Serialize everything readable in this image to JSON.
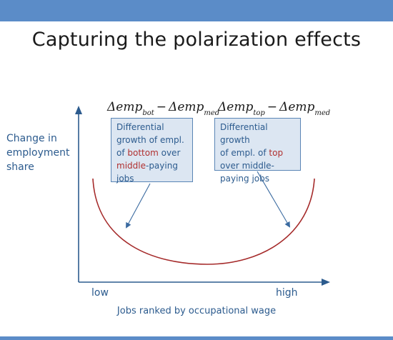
{
  "title": "Capturing the polarization effects",
  "y_axis_label_lines": [
    "Change in",
    "employment",
    "share"
  ],
  "x_axis_label": "Jobs ranked by occupational wage",
  "x_ticks": {
    "low": "low",
    "high": "high"
  },
  "formulas": {
    "left": {
      "term1": "Δemp",
      "sub1": "bot",
      "operator": "−",
      "term2": "Δemp",
      "sub2": "med"
    },
    "right": {
      "term1": "Δemp",
      "sub1": "top",
      "operator": "−",
      "term2": "Δemp",
      "sub2": "med"
    }
  },
  "callouts": {
    "left": {
      "line1": "Differential",
      "line2": "growth of empl.",
      "line3_pre": "of ",
      "line3_hl": "bottom",
      "line3_post": " over",
      "line4_hl": "middle",
      "line4_post": "-paying",
      "line5": "jobs"
    },
    "right": {
      "line1": "Differential growth",
      "line2_pre": "of empl. of ",
      "line2_hl": "top",
      "line3": "over middle-",
      "line4": "paying jobs"
    }
  },
  "colors": {
    "header_bar": "#5b8cc8",
    "axis": "#2c5b8e",
    "curve": "#a52a2a",
    "callout_fill": "#dce6f2",
    "callout_border": "#5a85b5",
    "highlight_text": "#b03030"
  }
}
